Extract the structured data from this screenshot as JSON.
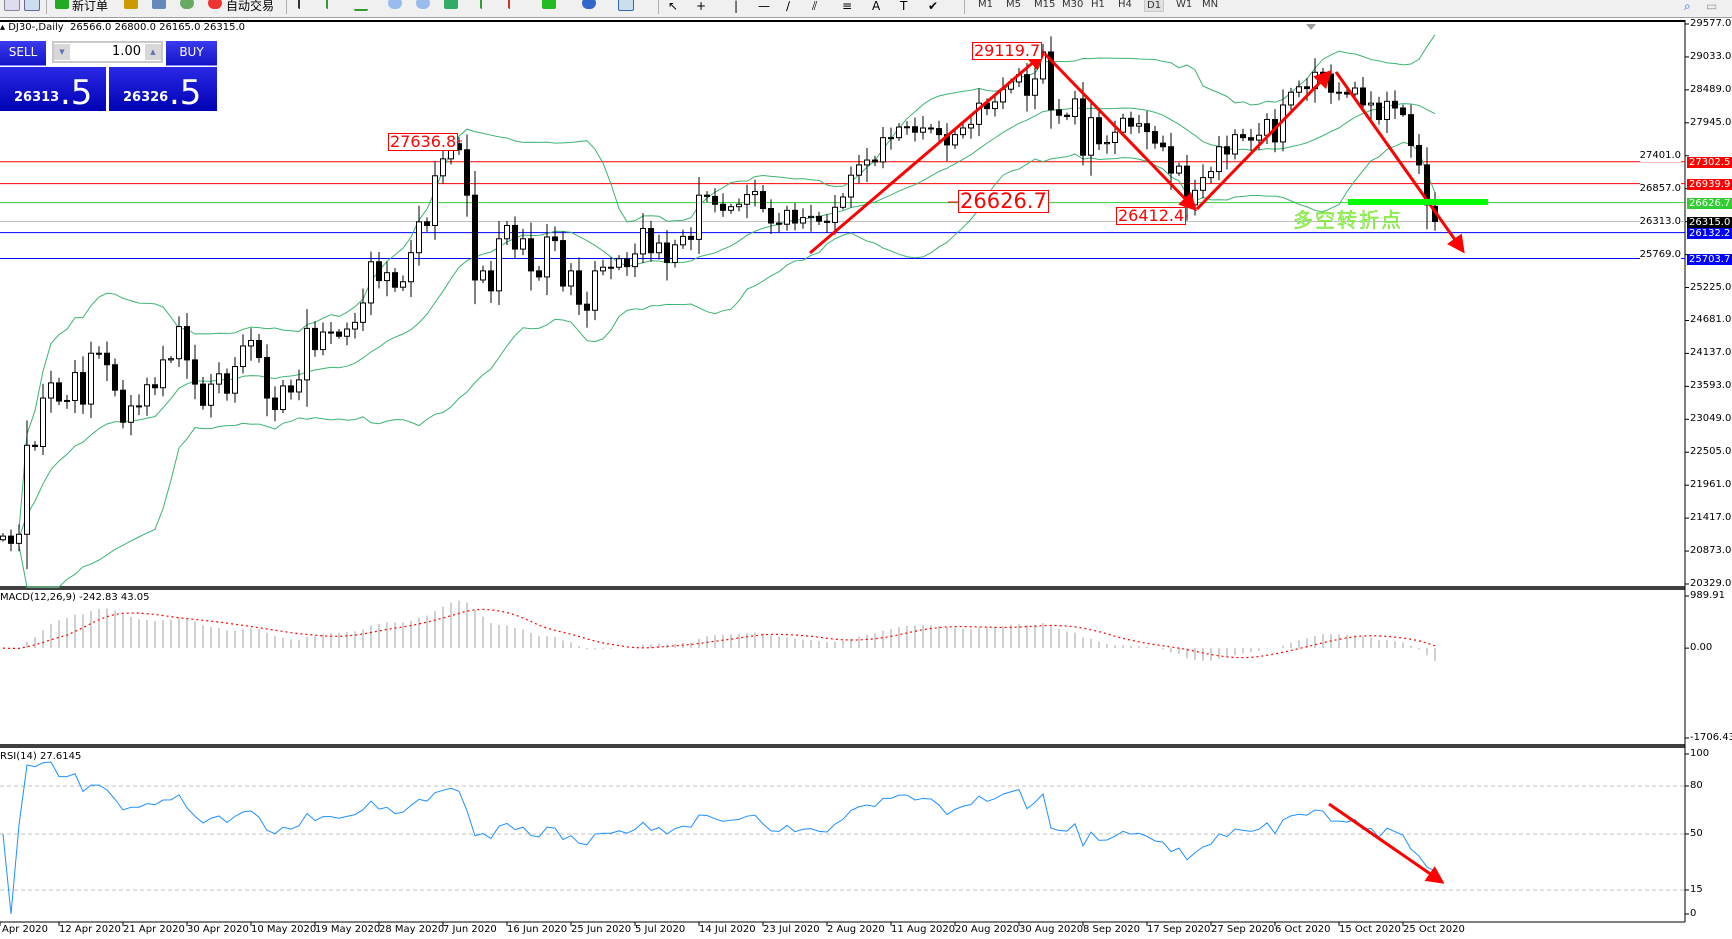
{
  "toolbar": {
    "new_order": "新订单",
    "auto_trading": "自动交易",
    "timeframes": [
      "M1",
      "M5",
      "M15",
      "M30",
      "H1",
      "H4",
      "D1",
      "W1",
      "MN"
    ],
    "active_timeframe": "D1"
  },
  "chart": {
    "symbol_header": "DJ30-,Daily",
    "ohlc_text": "26566.0 26800.0 26165.0 26315.0"
  },
  "trade_panel": {
    "sell_label": "SELL",
    "buy_label": "BUY",
    "lot": "1.00",
    "sell_price_main": "26313",
    "sell_price_frac": ".5",
    "buy_price_main": "26326",
    "buy_price_frac": ".5"
  },
  "chart_data": {
    "type": "candlestick",
    "price_axis": {
      "ylim": [
        20329.0,
        29577.0
      ],
      "ticks": [
        "29577.0",
        "29033.0",
        "28489.0",
        "27945.0",
        "27401.0",
        "26857.0",
        "26313.0",
        "25769.0",
        "25225.0",
        "24681.0",
        "24137.0",
        "23593.0",
        "23049.0",
        "22505.0",
        "21961.0",
        "21417.0",
        "20873.0",
        "20329.0"
      ]
    },
    "x_ticks": [
      "Apr 2020",
      "12 Apr 2020",
      "21 Apr 2020",
      "30 Apr 2020",
      "10 May 2020",
      "19 May 2020",
      "28 May 2020",
      "7 Jun 2020",
      "16 Jun 2020",
      "25 Jun 2020",
      "5 Jul 2020",
      "14 Jul 2020",
      "23 Jul 2020",
      "2 Aug 2020",
      "11 Aug 2020",
      "20 Aug 2020",
      "30 Aug 2020",
      "8 Sep 2020",
      "17 Sep 2020",
      "27 Sep 2020",
      "6 Oct 2020",
      "15 Oct 2020",
      "25 Oct 2020"
    ],
    "closes": [
      21120,
      21000,
      21150,
      22620,
      22600,
      23400,
      23650,
      23350,
      23360,
      23820,
      23300,
      24140,
      24140,
      23950,
      23530,
      23000,
      23270,
      23270,
      23620,
      23570,
      24030,
      24050,
      24580,
      24030,
      23630,
      23280,
      23630,
      23800,
      23480,
      23920,
      24260,
      24350,
      24070,
      23400,
      23210,
      23600,
      23500,
      23700,
      24550,
      24200,
      24490,
      24490,
      24420,
      24540,
      24650,
      24970,
      25650,
      25340,
      25470,
      25230,
      25320,
      25800,
      26310,
      26250,
      27070,
      27350,
      27600,
      27500,
      26750,
      25350,
      25500,
      25170,
      26030,
      26250,
      25860,
      26030,
      25500,
      25400,
      26060,
      26000,
      25250,
      25500,
      24950,
      24850,
      25500,
      25560,
      25560,
      25700,
      25570,
      25780,
      26200,
      25800,
      25960,
      25640,
      25930,
      26070,
      26020,
      26750,
      26730,
      26600,
      26500,
      26560,
      26600,
      26760,
      26810,
      26530,
      26290,
      26270,
      26500,
      26290,
      26380,
      26400,
      26320,
      26300,
      26550,
      26720,
      27080,
      27250,
      27330,
      27300,
      27700,
      27700,
      27875,
      27880,
      27790,
      27860,
      27850,
      27750,
      27580,
      27750,
      27860,
      27920,
      28270,
      28180,
      28290,
      28500,
      28620,
      28740,
      28400,
      28670,
      29115,
      28160,
      28070,
      28050,
      28340,
      27410,
      28030,
      27600,
      27620,
      27790,
      28020,
      27890,
      27930,
      27800,
      27610,
      27550,
      27115,
      27230,
      26590,
      26830,
      27040,
      27140,
      27550,
      27430,
      27750,
      27700,
      27660,
      27740,
      28000,
      27630,
      28240,
      28450,
      28540,
      28510,
      28780,
      28750,
      28450,
      28450,
      28420,
      28520,
      28240,
      28270,
      28000,
      28300,
      28190,
      28080,
      27570,
      27250,
      26590,
      26315
    ],
    "last_bar": {
      "open": 26566.0,
      "high": 26800.0,
      "low": 26165.0,
      "close": 26315.0
    },
    "bollinger": {
      "period": 20,
      "deviation": 2,
      "color": "#3cb371"
    },
    "levels": [
      {
        "price": 27302.5,
        "label": "27302.5",
        "color": "#ff0000"
      },
      {
        "price": 26939.9,
        "label": "26939.9",
        "color": "#ff0000"
      },
      {
        "price": 26626.7,
        "label": "26626.7",
        "color": "#32cd32"
      },
      {
        "price": 26315.0,
        "label": "26315.0",
        "color": "#000000",
        "line_color": "#c0c0c0"
      },
      {
        "price": 26132.2,
        "label": "26132.2",
        "color": "#0000ff"
      },
      {
        "price": 25703.7,
        "label": "25703.7",
        "color": "#0000ff"
      }
    ],
    "annotations": {
      "high_june": "27636.8",
      "high_sep": "29119.7",
      "pivot": "26626.7",
      "low_sep": "26412.4",
      "turning_point_text": "多空转折点",
      "arrow_color": "#ff0000",
      "turning_bar_color": "#00ff00"
    },
    "macd": {
      "label": "MACD(12,26,9) -242.83 43.05",
      "params": [
        12,
        26,
        9
      ],
      "ylim": [
        -1706.43,
        989.91
      ],
      "ticks": [
        "989.91",
        "0.00",
        "-1706.43"
      ],
      "histogram_color": "#c0c0c0",
      "signal_color": "#ff0000"
    },
    "rsi": {
      "label": "RSI(14) 27.6145",
      "period": 14,
      "ylim": [
        0,
        100
      ],
      "levels": [
        80,
        50,
        15
      ],
      "ticks": [
        "100",
        "80",
        "50",
        "15",
        "0"
      ],
      "color": "#1e90ff"
    }
  }
}
